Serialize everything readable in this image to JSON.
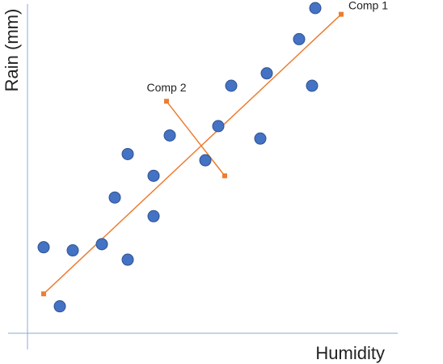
{
  "chart_data": {
    "type": "scatter",
    "title": "",
    "xlabel": "Humidity",
    "ylabel": "Rain (mm)",
    "xlim": [
      0,
      10
    ],
    "ylim": [
      0,
      10
    ],
    "grid": false,
    "legend": "none",
    "points": [
      {
        "x": 0.5,
        "y": 2.3
      },
      {
        "x": 1.0,
        "y": 0.4
      },
      {
        "x": 1.4,
        "y": 2.2
      },
      {
        "x": 2.3,
        "y": 2.4
      },
      {
        "x": 2.7,
        "y": 3.9
      },
      {
        "x": 3.1,
        "y": 5.3
      },
      {
        "x": 3.1,
        "y": 1.9
      },
      {
        "x": 3.9,
        "y": 4.6
      },
      {
        "x": 3.9,
        "y": 3.3
      },
      {
        "x": 4.4,
        "y": 5.9
      },
      {
        "x": 5.5,
        "y": 5.1
      },
      {
        "x": 5.9,
        "y": 6.2
      },
      {
        "x": 6.3,
        "y": 7.5
      },
      {
        "x": 7.2,
        "y": 5.8
      },
      {
        "x": 7.4,
        "y": 7.9
      },
      {
        "x": 8.4,
        "y": 9.0
      },
      {
        "x": 8.8,
        "y": 7.5
      },
      {
        "x": 8.9,
        "y": 10.0
      }
    ],
    "components": [
      {
        "label": "Comp 1",
        "start": {
          "x": 0.5,
          "y": 0.8
        },
        "end": {
          "x": 9.7,
          "y": 9.8
        },
        "label_anchor": "end"
      },
      {
        "label": "Comp 2",
        "start": {
          "x": 4.3,
          "y": 7.0
        },
        "end": {
          "x": 6.1,
          "y": 4.6
        },
        "label_anchor": "start"
      }
    ],
    "colors": {
      "point_fill": "#4472C4",
      "point_stroke": "#2F528F",
      "component": "#ED7D31",
      "axis": "#8EA9DB"
    }
  }
}
